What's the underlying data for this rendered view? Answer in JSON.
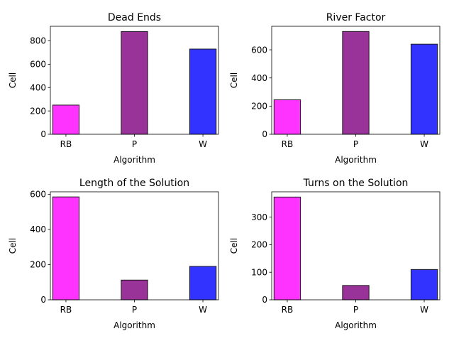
{
  "chart_data": [
    {
      "type": "bar",
      "title": "Dead Ends",
      "xlabel": "Algorithm",
      "ylabel": "Cell",
      "categories": [
        "RB",
        "P",
        "W"
      ],
      "values": [
        250,
        880,
        730
      ],
      "colors": [
        "#ff33ff",
        "#993399",
        "#3333ff"
      ],
      "ylim": [
        0,
        925
      ],
      "yticks": [
        0,
        200,
        400,
        600,
        800
      ],
      "grid": false
    },
    {
      "type": "bar",
      "title": "River Factor",
      "xlabel": "Algorithm",
      "ylabel": "Cell",
      "categories": [
        "RB",
        "P",
        "W"
      ],
      "values": [
        245,
        730,
        640
      ],
      "colors": [
        "#ff33ff",
        "#993399",
        "#3333ff"
      ],
      "ylim": [
        0,
        767
      ],
      "yticks": [
        0,
        200,
        400,
        600
      ],
      "grid": false
    },
    {
      "type": "bar",
      "title": "Length of the Solution",
      "xlabel": "Algorithm",
      "ylabel": "Cell",
      "categories": [
        "RB",
        "P",
        "W"
      ],
      "values": [
        585,
        112,
        190
      ],
      "colors": [
        "#ff33ff",
        "#993399",
        "#3333ff"
      ],
      "ylim": [
        0,
        614
      ],
      "yticks": [
        0,
        200,
        400,
        600
      ],
      "grid": false
    },
    {
      "type": "bar",
      "title": "Turns on the Solution",
      "xlabel": "Algorithm",
      "ylabel": "Cell",
      "categories": [
        "RB",
        "P",
        "W"
      ],
      "values": [
        373,
        52,
        110
      ],
      "colors": [
        "#ff33ff",
        "#993399",
        "#3333ff"
      ],
      "ylim": [
        0,
        392
      ],
      "yticks": [
        0,
        100,
        200,
        300
      ],
      "grid": false
    }
  ]
}
